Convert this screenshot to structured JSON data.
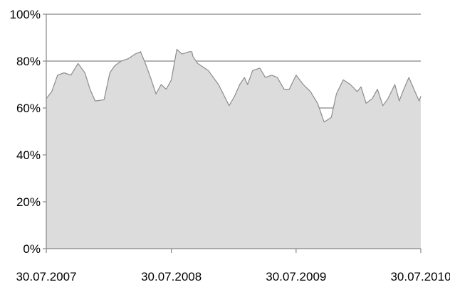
{
  "chart_data": {
    "type": "area",
    "title": "",
    "xlabel": "",
    "ylabel": "",
    "ylim": [
      0,
      100
    ],
    "xlim": [
      "2007-07-30",
      "2010-07-30"
    ],
    "y_unit": "%",
    "grid": "horizontal major gridlines",
    "legend": "none",
    "colors": {
      "fill": "#dcdcdc",
      "line": "#8c8c8c",
      "grid": "#868686",
      "axis": "#868686"
    },
    "x_ticks": [
      "30.07.2007",
      "30.07.2008",
      "30.07.2009",
      "30.07.2010"
    ],
    "y_ticks": [
      "0%",
      "20%",
      "40%",
      "60%",
      "80%",
      "100%"
    ],
    "series": [
      {
        "x": [
          "2007-07-30",
          "2007-08-15",
          "2007-09-01",
          "2007-09-20",
          "2007-10-10",
          "2007-10-31",
          "2007-11-20",
          "2007-12-05",
          "2007-12-20",
          "2008-01-15",
          "2008-02-01",
          "2008-02-15",
          "2008-03-05",
          "2008-03-25",
          "2008-04-15",
          "2008-05-01",
          "2008-05-15",
          "2008-05-30",
          "2008-06-15",
          "2008-06-30",
          "2008-07-15",
          "2008-07-30",
          "2008-08-15",
          "2008-08-30",
          "2008-09-20",
          "2008-09-28",
          "2008-10-01",
          "2008-10-15",
          "2008-11-15",
          "2008-12-15",
          "2009-01-15",
          "2009-01-31",
          "2009-02-15",
          "2009-03-01",
          "2009-03-10",
          "2009-03-25",
          "2009-04-15",
          "2009-05-01",
          "2009-05-20",
          "2009-06-05",
          "2009-06-25",
          "2009-07-10",
          "2009-07-30",
          "2009-08-20",
          "2009-09-10",
          "2009-10-01",
          "2009-10-20",
          "2009-11-10",
          "2009-11-25",
          "2009-12-15",
          "2010-01-05",
          "2010-01-25",
          "2010-02-05",
          "2010-02-20",
          "2010-03-10",
          "2010-03-25",
          "2010-04-10",
          "2010-04-25",
          "2010-05-15",
          "2010-05-28",
          "2010-06-10",
          "2010-06-25",
          "2010-07-10",
          "2010-07-25",
          "2010-07-30"
        ],
        "values": [
          64,
          67,
          74,
          75,
          74,
          79,
          75,
          68,
          63,
          63.5,
          75,
          78,
          80,
          81,
          83,
          84,
          79,
          73,
          66,
          70,
          68,
          72,
          85,
          83,
          84,
          84,
          82,
          79,
          76,
          70,
          61,
          65,
          70,
          73,
          70,
          76,
          77,
          73,
          74,
          73,
          68,
          68,
          74,
          70,
          67,
          62,
          54,
          56,
          66,
          72,
          70,
          67,
          69,
          62,
          64,
          68,
          61,
          64,
          70,
          63,
          68,
          73,
          68,
          63,
          65
        ]
      }
    ]
  }
}
